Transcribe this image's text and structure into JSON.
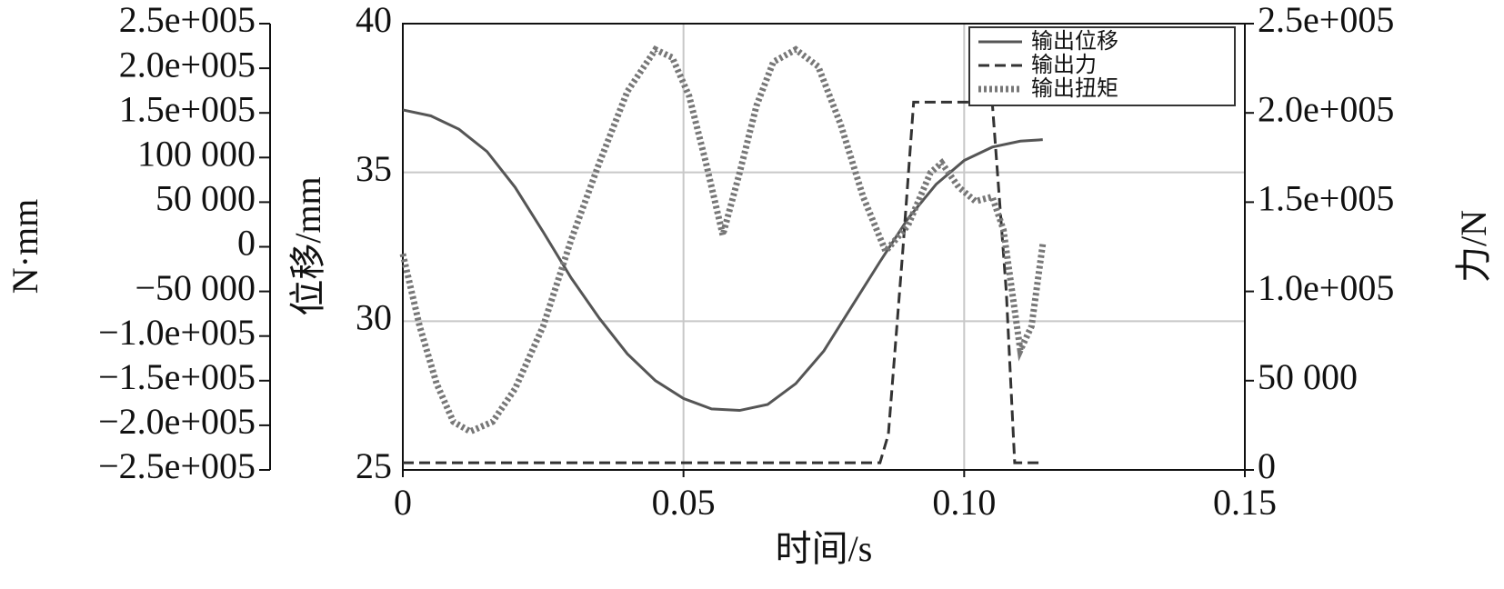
{
  "chart_data": {
    "type": "line",
    "xlabel": "时间/s",
    "ylabel": "位移/mm",
    "y2label": "力/N",
    "y3label": "N·mm",
    "xlim": [
      0,
      0.15
    ],
    "xticks": [
      0,
      0.05,
      {
        "value": 0.1,
        "label": "0.10"
      },
      0.15
    ],
    "ylim": [
      25,
      40
    ],
    "yticks": [
      25,
      30,
      35,
      40
    ],
    "y2lim": [
      0,
      250000
    ],
    "y2ticks": [
      0,
      {
        "value": 50000,
        "label": "50 000"
      },
      {
        "value": 100000,
        "label": "1.0e+005"
      },
      {
        "value": 150000,
        "label": "1.5e+005"
      },
      {
        "value": 200000,
        "label": "2.0e+005"
      },
      {
        "value": 250000,
        "label": "2.5e+005"
      }
    ],
    "y3lim": [
      -250000,
      250000
    ],
    "y3ticks": [
      {
        "value": -250000,
        "label": "−2.5e+005"
      },
      {
        "value": -200000,
        "label": "−2.0e+005"
      },
      {
        "value": -150000,
        "label": "−1.5e+005"
      },
      {
        "value": -100000,
        "label": "−1.0e+005"
      },
      {
        "value": -50000,
        "label": "−50 000"
      },
      0,
      {
        "value": 50000,
        "label": "50 000"
      },
      {
        "value": 100000,
        "label": "100 000"
      },
      {
        "value": 150000,
        "label": "1.5e+005"
      },
      {
        "value": 200000,
        "label": "2.0e+005"
      },
      {
        "value": 250000,
        "label": "2.5e+005"
      }
    ],
    "grid": true,
    "legend": "upper right",
    "series": [
      {
        "name": "输出位移",
        "color": "#555555",
        "style": "solid",
        "axis": "y",
        "x": [
          0,
          0.005,
          0.01,
          0.015,
          0.02,
          0.025,
          0.03,
          0.035,
          0.04,
          0.045,
          0.05,
          0.055,
          0.06,
          0.065,
          0.07,
          0.075,
          0.08,
          0.085,
          0.09,
          0.095,
          0.1,
          0.105,
          0.11,
          0.114
        ],
        "values": [
          37.1,
          36.9,
          36.45,
          35.7,
          34.5,
          33.0,
          31.45,
          30.1,
          28.9,
          28.0,
          27.4,
          27.05,
          27.0,
          27.2,
          27.9,
          29.0,
          30.5,
          32.0,
          33.45,
          34.6,
          35.4,
          35.85,
          36.05,
          36.1
        ]
      },
      {
        "name": "输出力",
        "color": "#333333",
        "style": "dashed",
        "axis": "y2",
        "x": [
          0,
          0.085,
          0.0865,
          0.089,
          0.091,
          0.104,
          0.105,
          0.1075,
          0.109,
          0.114
        ],
        "values": [
          4000,
          4000,
          20000,
          120000,
          206000,
          206000,
          206000,
          100000,
          4000,
          4000
        ]
      },
      {
        "name": "输出扭矩",
        "color": "#777777",
        "style": "dotted",
        "axis": "y3",
        "x": [
          0,
          0.003,
          0.006,
          0.009,
          0.012,
          0.016,
          0.02,
          0.025,
          0.03,
          0.035,
          0.04,
          0.045,
          0.048,
          0.051,
          0.054,
          0.057,
          0.06,
          0.063,
          0.066,
          0.07,
          0.074,
          0.078,
          0.082,
          0.086,
          0.09,
          0.094,
          0.096,
          0.099,
          0.102,
          0.105,
          0.107,
          0.11,
          0.112,
          0.114
        ],
        "values": [
          -8000,
          -89000,
          -153000,
          -196000,
          -207000,
          -196000,
          -159000,
          -89000,
          8000,
          94000,
          174000,
          221000,
          212000,
          169000,
          94000,
          13000,
          83000,
          158000,
          207000,
          221000,
          202000,
          137000,
          56000,
          -5000,
          24000,
          83000,
          94000,
          67000,
          51000,
          56000,
          19000,
          -116000,
          -89000,
          3000
        ]
      }
    ]
  }
}
